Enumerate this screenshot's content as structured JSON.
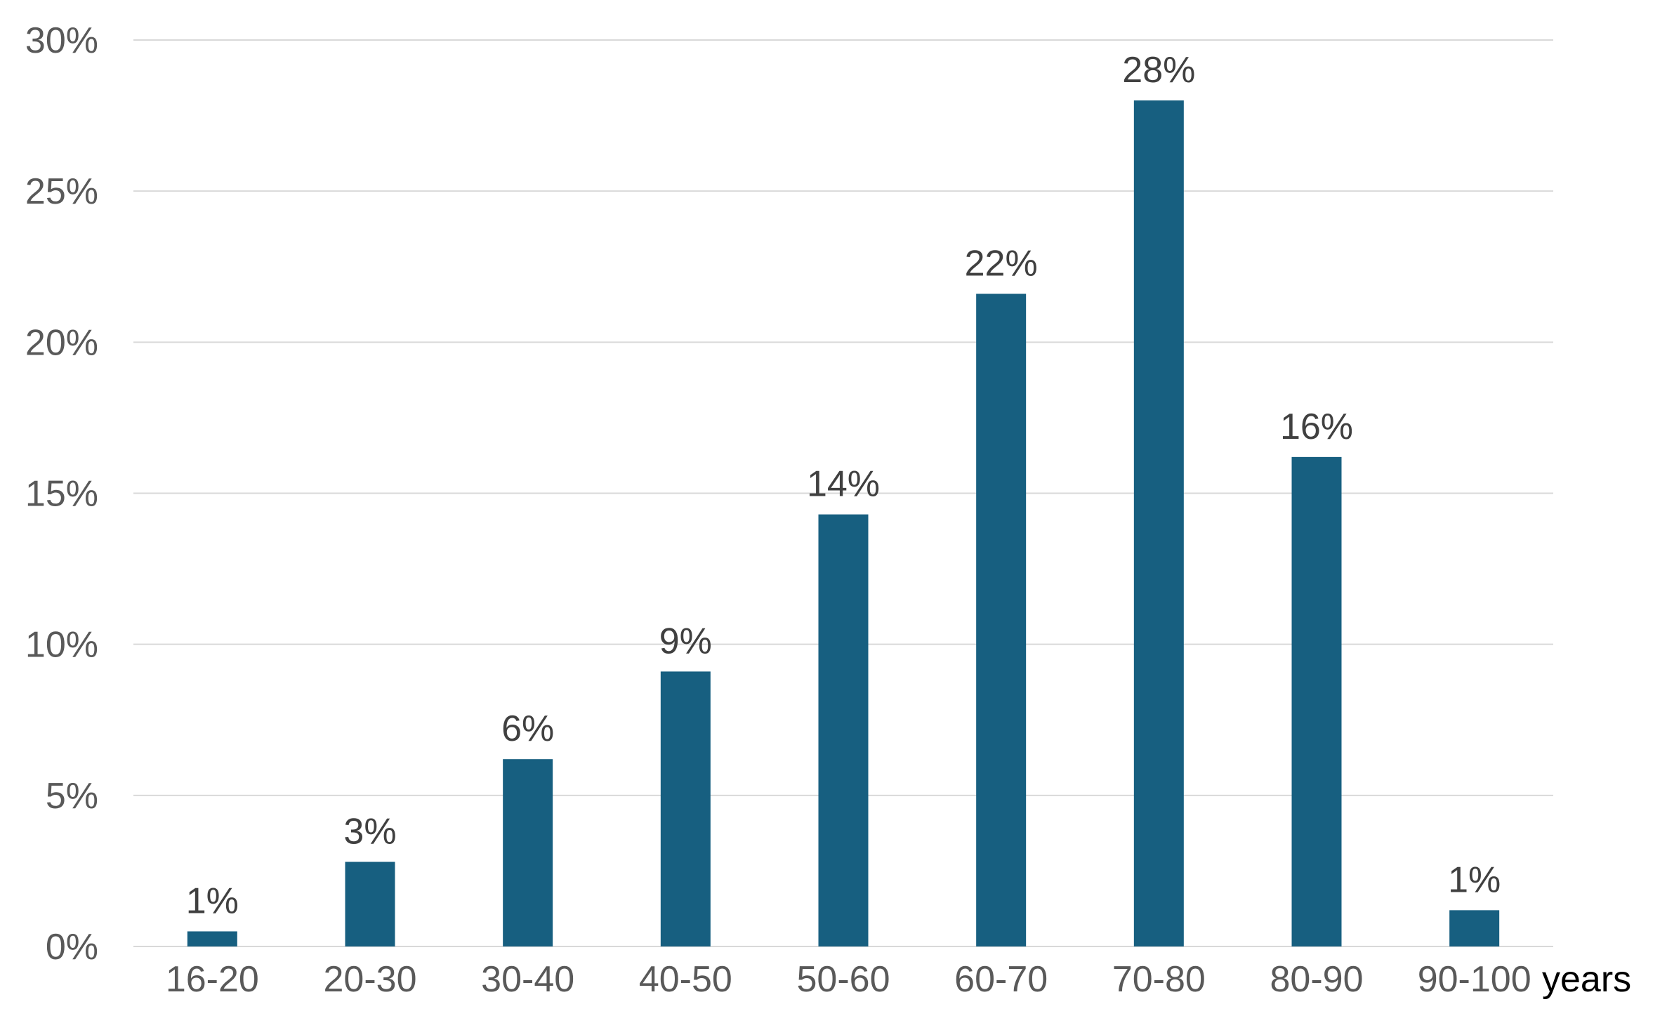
{
  "chart_data": {
    "type": "bar",
    "categories": [
      "16-20",
      "20-30",
      "30-40",
      "40-50",
      "50-60",
      "60-70",
      "70-80",
      "80-90",
      "90-100"
    ],
    "values": [
      0.5,
      2.8,
      6.2,
      9.1,
      14.3,
      21.6,
      28.0,
      16.2,
      1.2
    ],
    "data_labels": [
      "1%",
      "3%",
      "6%",
      "9%",
      "14%",
      "22%",
      "28%",
      "16%",
      "1%"
    ],
    "y_ticks": [
      "0%",
      "5%",
      "10%",
      "15%",
      "20%",
      "25%",
      "30%"
    ],
    "ylim": [
      0,
      30
    ],
    "x_unit": "years",
    "grid": true,
    "legend": "none",
    "bar_color": "#175f80",
    "grid_color": "#d9d9d9"
  }
}
